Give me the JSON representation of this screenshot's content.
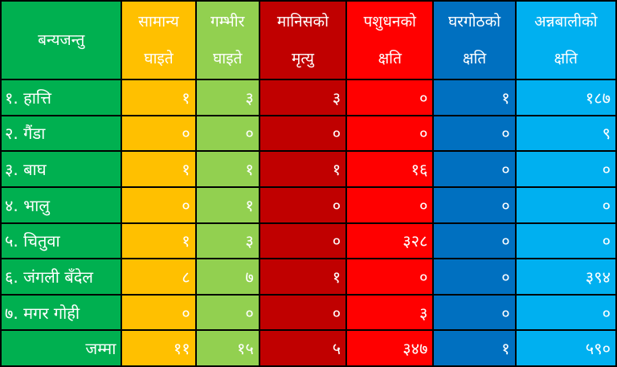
{
  "colors": [
    "#00b050",
    "#ffc000",
    "#92d050",
    "#c00000",
    "#ff0000",
    "#0070c0",
    "#00b0f0"
  ],
  "headers": [
    {
      "l1": "बन्यजन्तु",
      "l2": ""
    },
    {
      "l1": "सामान्य",
      "l2": "घाइते"
    },
    {
      "l1": "गम्भीर",
      "l2": "घाइते"
    },
    {
      "l1": "मानिसको",
      "l2": "मृत्यु"
    },
    {
      "l1": "पशुधनको",
      "l2": "क्षति"
    },
    {
      "l1": "घरगोठको",
      "l2": "क्षति"
    },
    {
      "l1": "अन्नबालीको",
      "l2": "क्षति"
    }
  ],
  "rows": [
    [
      "१. हात्ति",
      "१",
      "३",
      "३",
      "०",
      "१",
      "१८७"
    ],
    [
      "२. गैंडा",
      "०",
      "०",
      "०",
      "०",
      "०",
      "९"
    ],
    [
      "३. बाघ",
      "१",
      "१",
      "१",
      "१६",
      "०",
      "०"
    ],
    [
      "४. भालु",
      "०",
      "१",
      "०",
      "०",
      "०",
      "०"
    ],
    [
      "५. चितुवा",
      "१",
      "३",
      "०",
      "३२८",
      "०",
      "०"
    ],
    [
      "६. जंगली बँदेल",
      "८",
      "७",
      "१",
      "०",
      "०",
      "३९४"
    ],
    [
      "७. मगर गोही",
      "०",
      "०",
      "०",
      "३",
      "०",
      "०"
    ]
  ],
  "total": [
    "जम्मा",
    "११",
    "१५",
    "५",
    "३४७",
    "१",
    "५९०"
  ]
}
